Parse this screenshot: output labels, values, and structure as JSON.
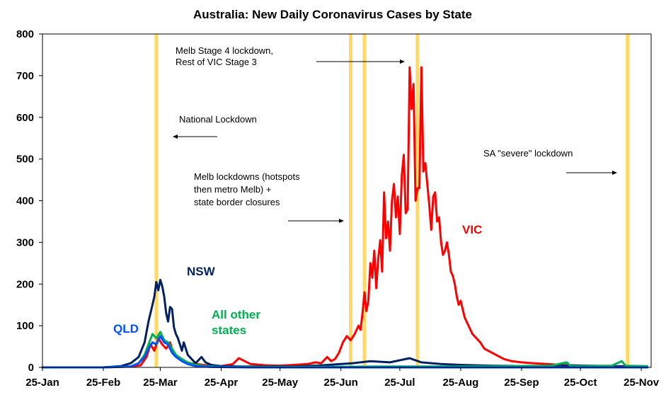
{
  "chart_data": {
    "type": "line",
    "title": "Australia: New Daily Coronavirus Cases by State",
    "xlabel": "",
    "ylabel": "",
    "ylim": [
      0,
      800
    ],
    "xlim": [
      "2020-01-25",
      "2020-11-30"
    ],
    "yticks": [
      "0",
      "100",
      "200",
      "300",
      "400",
      "500",
      "600",
      "700",
      "800"
    ],
    "xticks": [
      {
        "date": "2020-01-25",
        "label": "25-Jan"
      },
      {
        "date": "2020-02-25",
        "label": "25-Feb"
      },
      {
        "date": "2020-03-25",
        "label": "25-Mar"
      },
      {
        "date": "2020-04-25",
        "label": "25-Apr"
      },
      {
        "date": "2020-05-25",
        "label": "25-May"
      },
      {
        "date": "2020-06-25",
        "label": "25-Jun"
      },
      {
        "date": "2020-07-25",
        "label": "25-Jul"
      },
      {
        "date": "2020-08-25",
        "label": "25-Aug"
      },
      {
        "date": "2020-09-25",
        "label": "25-Sep"
      },
      {
        "date": "2020-10-25",
        "label": "25-Oct"
      },
      {
        "date": "2020-11-25",
        "label": "25-Nov"
      }
    ],
    "grid": false,
    "series": [
      {
        "name": "VIC",
        "color": "#ff0000",
        "points": [
          [
            "2020-01-25",
            0
          ],
          [
            "2020-02-25",
            0
          ],
          [
            "2020-03-10",
            2
          ],
          [
            "2020-03-15",
            5
          ],
          [
            "2020-03-18",
            25
          ],
          [
            "2020-03-20",
            55
          ],
          [
            "2020-03-22",
            40
          ],
          [
            "2020-03-24",
            70
          ],
          [
            "2020-03-26",
            55
          ],
          [
            "2020-03-28",
            45
          ],
          [
            "2020-03-30",
            60
          ],
          [
            "2020-04-01",
            30
          ],
          [
            "2020-04-04",
            20
          ],
          [
            "2020-04-07",
            12
          ],
          [
            "2020-04-12",
            8
          ],
          [
            "2020-04-18",
            5
          ],
          [
            "2020-04-25",
            3
          ],
          [
            "2020-05-01",
            8
          ],
          [
            "2020-05-04",
            22
          ],
          [
            "2020-05-07",
            15
          ],
          [
            "2020-05-10",
            8
          ],
          [
            "2020-05-18",
            5
          ],
          [
            "2020-05-25",
            4
          ],
          [
            "2020-06-01",
            6
          ],
          [
            "2020-06-08",
            8
          ],
          [
            "2020-06-12",
            12
          ],
          [
            "2020-06-15",
            10
          ],
          [
            "2020-06-18",
            25
          ],
          [
            "2020-06-20",
            15
          ],
          [
            "2020-06-22",
            20
          ],
          [
            "2020-06-24",
            35
          ],
          [
            "2020-06-26",
            60
          ],
          [
            "2020-06-28",
            75
          ],
          [
            "2020-06-30",
            65
          ],
          [
            "2020-07-02",
            80
          ],
          [
            "2020-07-04",
            100
          ],
          [
            "2020-07-05",
            90
          ],
          [
            "2020-07-06",
            130
          ],
          [
            "2020-07-07",
            180
          ],
          [
            "2020-07-08",
            135
          ],
          [
            "2020-07-09",
            160
          ],
          [
            "2020-07-10",
            250
          ],
          [
            "2020-07-11",
            215
          ],
          [
            "2020-07-12",
            280
          ],
          [
            "2020-07-13",
            190
          ],
          [
            "2020-07-14",
            260
          ],
          [
            "2020-07-15",
            305
          ],
          [
            "2020-07-16",
            230
          ],
          [
            "2020-07-17",
            420
          ],
          [
            "2020-07-18",
            310
          ],
          [
            "2020-07-19",
            350
          ],
          [
            "2020-07-20",
            280
          ],
          [
            "2020-07-21",
            400
          ],
          [
            "2020-07-22",
            440
          ],
          [
            "2020-07-23",
            360
          ],
          [
            "2020-07-24",
            410
          ],
          [
            "2020-07-25",
            320
          ],
          [
            "2020-07-26",
            460
          ],
          [
            "2020-07-27",
            510
          ],
          [
            "2020-07-28",
            370
          ],
          [
            "2020-07-29",
            380
          ],
          [
            "2020-07-30",
            720
          ],
          [
            "2020-07-31",
            620
          ],
          [
            "2020-08-01",
            680
          ],
          [
            "2020-08-02",
            400
          ],
          [
            "2020-08-03",
            430
          ],
          [
            "2020-08-04",
            430
          ],
          [
            "2020-08-05",
            720
          ],
          [
            "2020-08-06",
            470
          ],
          [
            "2020-08-07",
            490
          ],
          [
            "2020-08-08",
            440
          ],
          [
            "2020-08-09",
            390
          ],
          [
            "2020-08-10",
            330
          ],
          [
            "2020-08-11",
            410
          ],
          [
            "2020-08-12",
            420
          ],
          [
            "2020-08-13",
            350
          ],
          [
            "2020-08-14",
            360
          ],
          [
            "2020-08-15",
            300
          ],
          [
            "2020-08-16",
            270
          ],
          [
            "2020-08-17",
            280
          ],
          [
            "2020-08-18",
            300
          ],
          [
            "2020-08-19",
            270
          ],
          [
            "2020-08-20",
            230
          ],
          [
            "2020-08-21",
            220
          ],
          [
            "2020-08-22",
            200
          ],
          [
            "2020-08-23",
            170
          ],
          [
            "2020-08-24",
            150
          ],
          [
            "2020-08-25",
            160
          ],
          [
            "2020-08-26",
            140
          ],
          [
            "2020-08-27",
            120
          ],
          [
            "2020-08-28",
            110
          ],
          [
            "2020-08-29",
            100
          ],
          [
            "2020-08-30",
            90
          ],
          [
            "2020-08-31",
            80
          ],
          [
            "2020-09-02",
            70
          ],
          [
            "2020-09-04",
            60
          ],
          [
            "2020-09-06",
            45
          ],
          [
            "2020-09-08",
            40
          ],
          [
            "2020-09-10",
            35
          ],
          [
            "2020-09-12",
            30
          ],
          [
            "2020-09-14",
            25
          ],
          [
            "2020-09-16",
            20
          ],
          [
            "2020-09-20",
            15
          ],
          [
            "2020-09-25",
            12
          ],
          [
            "2020-10-01",
            10
          ],
          [
            "2020-10-08",
            8
          ],
          [
            "2020-10-15",
            6
          ],
          [
            "2020-10-22",
            4
          ],
          [
            "2020-10-29",
            2
          ],
          [
            "2020-11-05",
            1
          ],
          [
            "2020-11-15",
            1
          ],
          [
            "2020-11-28",
            0
          ]
        ]
      },
      {
        "name": "NSW",
        "color": "#002060",
        "points": [
          [
            "2020-01-25",
            0
          ],
          [
            "2020-02-25",
            0
          ],
          [
            "2020-03-05",
            3
          ],
          [
            "2020-03-10",
            10
          ],
          [
            "2020-03-14",
            25
          ],
          [
            "2020-03-17",
            60
          ],
          [
            "2020-03-19",
            110
          ],
          [
            "2020-03-21",
            150
          ],
          [
            "2020-03-22",
            170
          ],
          [
            "2020-03-23",
            205
          ],
          [
            "2020-03-24",
            185
          ],
          [
            "2020-03-25",
            210
          ],
          [
            "2020-03-26",
            195
          ],
          [
            "2020-03-27",
            170
          ],
          [
            "2020-03-28",
            130
          ],
          [
            "2020-03-29",
            110
          ],
          [
            "2020-03-30",
            145
          ],
          [
            "2020-03-31",
            140
          ],
          [
            "2020-04-01",
            95
          ],
          [
            "2020-04-02",
            80
          ],
          [
            "2020-04-03",
            70
          ],
          [
            "2020-04-04",
            55
          ],
          [
            "2020-04-05",
            40
          ],
          [
            "2020-04-06",
            60
          ],
          [
            "2020-04-08",
            30
          ],
          [
            "2020-04-10",
            20
          ],
          [
            "2020-04-12",
            10
          ],
          [
            "2020-04-15",
            25
          ],
          [
            "2020-04-17",
            12
          ],
          [
            "2020-04-20",
            6
          ],
          [
            "2020-04-25",
            3
          ],
          [
            "2020-05-05",
            2
          ],
          [
            "2020-06-01",
            2
          ],
          [
            "2020-06-15",
            5
          ],
          [
            "2020-07-01",
            10
          ],
          [
            "2020-07-10",
            15
          ],
          [
            "2020-07-20",
            12
          ],
          [
            "2020-07-30",
            22
          ],
          [
            "2020-08-05",
            12
          ],
          [
            "2020-08-15",
            8
          ],
          [
            "2020-08-25",
            6
          ],
          [
            "2020-09-10",
            4
          ],
          [
            "2020-10-01",
            3
          ],
          [
            "2020-10-20",
            5
          ],
          [
            "2020-11-10",
            3
          ],
          [
            "2020-11-28",
            2
          ]
        ]
      },
      {
        "name": "All other states",
        "color": "#00b050",
        "points": [
          [
            "2020-01-25",
            0
          ],
          [
            "2020-02-25",
            0
          ],
          [
            "2020-03-10",
            2
          ],
          [
            "2020-03-14",
            10
          ],
          [
            "2020-03-17",
            30
          ],
          [
            "2020-03-19",
            55
          ],
          [
            "2020-03-21",
            80
          ],
          [
            "2020-03-23",
            70
          ],
          [
            "2020-03-25",
            85
          ],
          [
            "2020-03-27",
            65
          ],
          [
            "2020-03-29",
            60
          ],
          [
            "2020-03-31",
            45
          ],
          [
            "2020-04-02",
            30
          ],
          [
            "2020-04-05",
            20
          ],
          [
            "2020-04-08",
            12
          ],
          [
            "2020-04-12",
            6
          ],
          [
            "2020-04-18",
            3
          ],
          [
            "2020-04-25",
            1
          ],
          [
            "2020-06-01",
            1
          ],
          [
            "2020-07-15",
            2
          ],
          [
            "2020-08-15",
            2
          ],
          [
            "2020-09-15",
            3
          ],
          [
            "2020-10-10",
            4
          ],
          [
            "2020-10-18",
            12
          ],
          [
            "2020-10-20",
            3
          ],
          [
            "2020-11-10",
            4
          ],
          [
            "2020-11-15",
            15
          ],
          [
            "2020-11-17",
            4
          ],
          [
            "2020-11-28",
            3
          ]
        ]
      },
      {
        "name": "QLD",
        "color": "#0050ff",
        "points": [
          [
            "2020-01-25",
            0
          ],
          [
            "2020-02-25",
            0
          ],
          [
            "2020-03-10",
            2
          ],
          [
            "2020-03-14",
            10
          ],
          [
            "2020-03-17",
            25
          ],
          [
            "2020-03-19",
            45
          ],
          [
            "2020-03-21",
            60
          ],
          [
            "2020-03-23",
            55
          ],
          [
            "2020-03-25",
            75
          ],
          [
            "2020-03-27",
            60
          ],
          [
            "2020-03-29",
            55
          ],
          [
            "2020-03-31",
            35
          ],
          [
            "2020-04-02",
            25
          ],
          [
            "2020-04-05",
            15
          ],
          [
            "2020-04-08",
            8
          ],
          [
            "2020-04-12",
            3
          ],
          [
            "2020-04-20",
            1
          ],
          [
            "2020-05-10",
            0
          ],
          [
            "2020-11-28",
            0
          ]
        ]
      }
    ],
    "series_labels": [
      {
        "text": "VIC",
        "color": "#ff0000"
      },
      {
        "text": "NSW",
        "color": "#002060"
      },
      {
        "text": "All other",
        "color": "#00b050"
      },
      {
        "text": "states",
        "color": "#00b050"
      },
      {
        "text": "QLD",
        "color": "#0050ff"
      }
    ],
    "event_lines": [
      {
        "date": "2020-03-23",
        "color": "#ffd966"
      },
      {
        "date": "2020-06-30",
        "color": "#ffd966"
      },
      {
        "date": "2020-07-07",
        "color": "#ffd966"
      },
      {
        "date": "2020-08-03",
        "color": "#ffd966"
      },
      {
        "date": "2020-11-18",
        "color": "#ffd966"
      }
    ],
    "annotations": [
      {
        "id": "melb-stage4",
        "lines": [
          "Melb Stage 4 lockdown,",
          "Rest of VIC  Stage 3"
        ]
      },
      {
        "id": "national-lockdown",
        "lines": [
          "National Lockdown"
        ]
      },
      {
        "id": "melb-lockdowns",
        "lines": [
          "Melb lockdowns  (hotspots",
          "then metro Melb) +",
          "state border closures"
        ]
      },
      {
        "id": "sa-lockdown",
        "lines": [
          "SA \"severe\" lockdown"
        ]
      }
    ]
  }
}
